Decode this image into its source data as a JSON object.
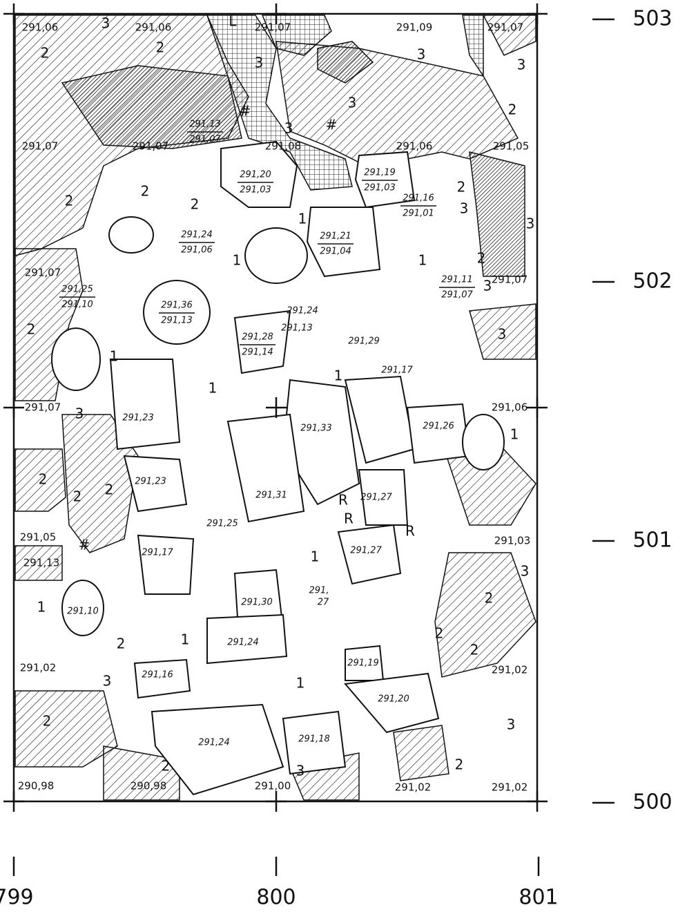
{
  "axes": {
    "y_labels": [
      "503",
      "502",
      "501",
      "500"
    ],
    "x_labels": [
      "799",
      "800",
      "801"
    ]
  },
  "elevations": [
    "291,06",
    "291,06",
    "291,07",
    "291,09",
    "291,07",
    "291,07",
    "291,07",
    "291,08",
    "291,06",
    "291,05",
    "291,07",
    "291,07",
    "291,07",
    "291,06",
    "291,05",
    "291,13",
    "291,03",
    "291,02",
    "291,02",
    "290,98",
    "290,98",
    "291,00",
    "291,02",
    "291,02"
  ],
  "zones": [
    "3",
    "2",
    "2",
    "L",
    "3",
    "3",
    "3",
    "3",
    "2",
    "3",
    "#",
    "2",
    "2",
    "2",
    "1",
    "1",
    "1",
    "2",
    "3",
    "3",
    "2",
    "3",
    "3",
    "2",
    "1",
    "1",
    "1",
    "3",
    "1",
    "2",
    "2",
    "2",
    "R",
    "R",
    "R",
    "1",
    "3",
    "2",
    "1",
    "2",
    "1",
    "2",
    "2",
    "3",
    "1",
    "2",
    "3",
    "2",
    "3",
    "2",
    "#",
    "#"
  ],
  "stones": [
    "291,23",
    "291,33",
    "291,26",
    "291,23",
    "291,31",
    "291,27",
    "291,25",
    "291,17",
    "291,27",
    "291,30",
    "291,10",
    "291,24",
    "291,19",
    "291,16",
    "291,20",
    "291,24",
    "291,18",
    "291,29",
    "291,17",
    "291,24",
    "291,13",
    "291,",
    "27"
  ],
  "fraction_stones": [
    {
      "top": "291,13",
      "bottom": "291,07"
    },
    {
      "top": "291,20",
      "bottom": "291,03"
    },
    {
      "top": "291,19",
      "bottom": "291,03"
    },
    {
      "top": "291,16",
      "bottom": "291,01"
    },
    {
      "top": "291,24",
      "bottom": "291,06"
    },
    {
      "top": "291,21",
      "bottom": "291,04"
    },
    {
      "top": "291,36",
      "bottom": "291,13"
    },
    {
      "top": "291,28",
      "bottom": "291,14"
    },
    {
      "top": "291,25",
      "bottom": "291,10"
    },
    {
      "top": "291,11",
      "bottom": "291,07"
    }
  ]
}
